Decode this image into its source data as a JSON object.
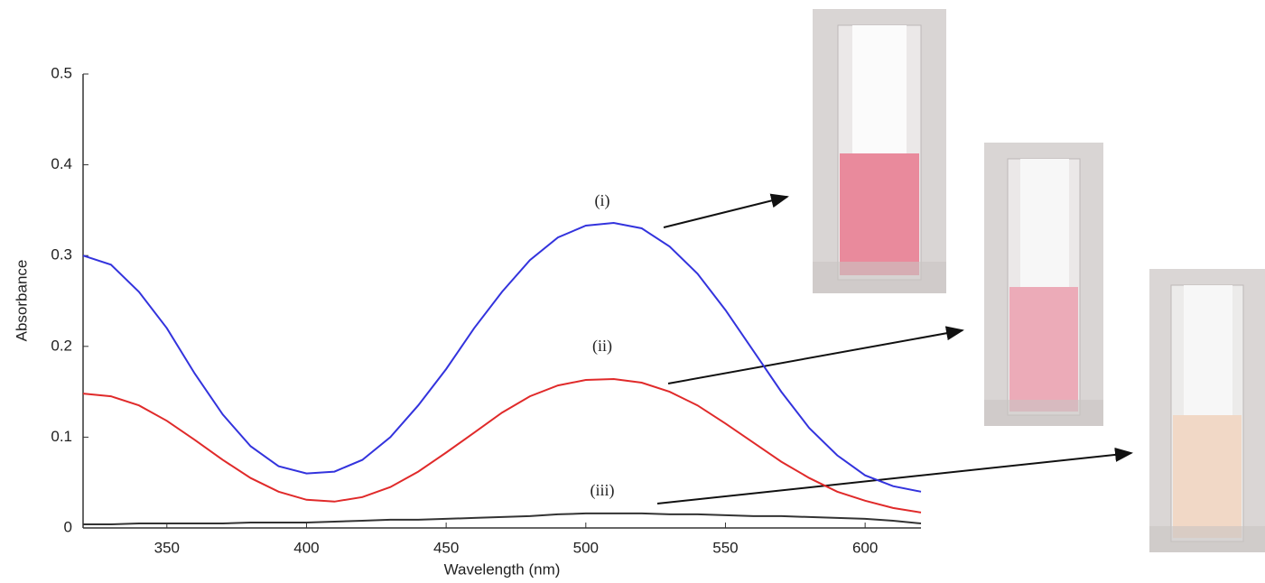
{
  "chart_data": {
    "type": "line",
    "x_label": "Wavelength (nm)",
    "y_label": "Absorbance",
    "xlim": [
      320,
      620
    ],
    "xticks": [
      350,
      400,
      450,
      500,
      550,
      600
    ],
    "ylim": [
      0,
      0.5
    ],
    "yticks": [
      0,
      0.1,
      0.2,
      0.3,
      0.4,
      0.5
    ],
    "x": [
      320,
      330,
      340,
      350,
      360,
      370,
      380,
      390,
      400,
      410,
      420,
      430,
      440,
      450,
      460,
      470,
      480,
      490,
      500,
      510,
      520,
      530,
      540,
      550,
      560,
      570,
      580,
      590,
      600,
      610,
      620
    ],
    "series": [
      {
        "name": "(i)",
        "color": "#3333dd",
        "values": [
          0.3,
          0.29,
          0.26,
          0.22,
          0.17,
          0.125,
          0.09,
          0.068,
          0.06,
          0.062,
          0.075,
          0.1,
          0.135,
          0.175,
          0.22,
          0.26,
          0.295,
          0.32,
          0.333,
          0.336,
          0.33,
          0.31,
          0.28,
          0.24,
          0.195,
          0.15,
          0.11,
          0.08,
          0.058,
          0.046,
          0.04
        ]
      },
      {
        "name": "(ii)",
        "color": "#e02a2a",
        "values": [
          0.148,
          0.145,
          0.135,
          0.118,
          0.097,
          0.075,
          0.055,
          0.04,
          0.031,
          0.029,
          0.034,
          0.045,
          0.062,
          0.083,
          0.105,
          0.127,
          0.145,
          0.157,
          0.163,
          0.164,
          0.16,
          0.15,
          0.135,
          0.115,
          0.094,
          0.073,
          0.055,
          0.04,
          0.03,
          0.022,
          0.017
        ]
      },
      {
        "name": "(iii)",
        "color": "#333333",
        "values": [
          0.004,
          0.004,
          0.005,
          0.005,
          0.005,
          0.005,
          0.006,
          0.006,
          0.006,
          0.007,
          0.008,
          0.009,
          0.009,
          0.01,
          0.011,
          0.012,
          0.013,
          0.015,
          0.016,
          0.016,
          0.016,
          0.015,
          0.015,
          0.014,
          0.013,
          0.013,
          0.012,
          0.011,
          0.01,
          0.008,
          0.005
        ]
      }
    ]
  }
}
